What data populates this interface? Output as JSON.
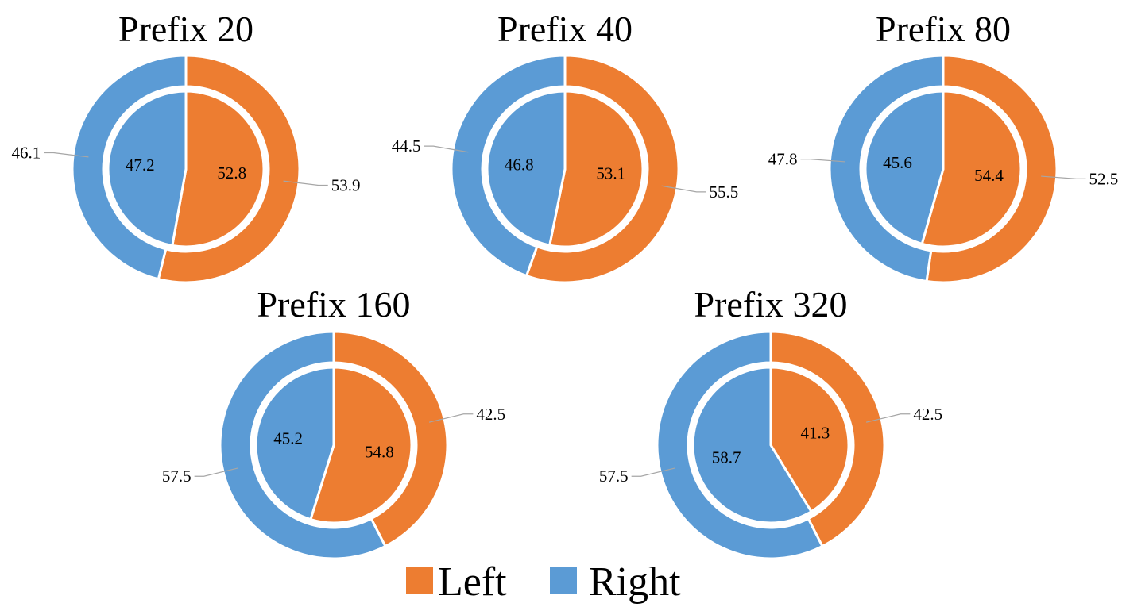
{
  "colors": {
    "left": "#ED7D31",
    "right": "#5B9BD5",
    "separator": "#ffffff"
  },
  "legend": [
    {
      "key": "left",
      "label": "Left"
    },
    {
      "key": "right",
      "label": "Right"
    }
  ],
  "chart_data": [
    {
      "type": "pie",
      "title": "Prefix 20",
      "outer": {
        "left": 53.9,
        "right": 46.1
      },
      "inner": {
        "left": 52.8,
        "right": 47.2
      }
    },
    {
      "type": "pie",
      "title": "Prefix 40",
      "outer": {
        "left": 55.5,
        "right": 44.5
      },
      "inner": {
        "left": 53.1,
        "right": 46.8
      }
    },
    {
      "type": "pie",
      "title": "Prefix 80",
      "outer": {
        "left": 52.5,
        "right": 47.8
      },
      "inner": {
        "left": 54.4,
        "right": 45.6
      }
    },
    {
      "type": "pie",
      "title": "Prefix 160",
      "outer": {
        "left": 42.5,
        "right": 57.5
      },
      "inner": {
        "left": 54.8,
        "right": 45.2
      }
    },
    {
      "type": "pie",
      "title": "Prefix 320",
      "outer": {
        "left": 42.5,
        "right": 57.5
      },
      "inner": {
        "left": 41.3,
        "right": 58.7
      }
    }
  ]
}
